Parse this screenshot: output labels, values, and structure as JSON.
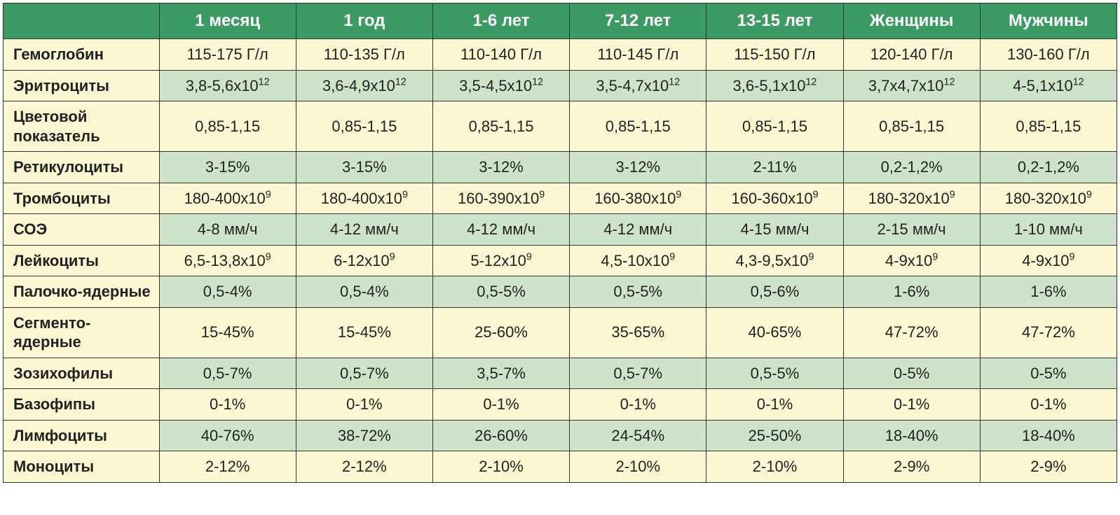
{
  "table": {
    "header_bg": "#3b9b63",
    "header_fg": "#ffffff",
    "row_bg_odd": "#faf7d2",
    "row_bg_even": "#cfe3cb",
    "border_color": "#333333",
    "label_fontweight": "bold",
    "value_align": "center",
    "font_family": "Arial",
    "header_fontsize_pt": 18,
    "cell_fontsize_pt": 16,
    "columns": [
      "",
      "1 месяц",
      "1 год",
      "1-6 лет",
      "7-12 лет",
      "13-15 лет",
      "Женщины",
      "Мужчины"
    ],
    "rows": [
      {
        "label": "Гемоглобин",
        "band": "odd",
        "cells": [
          {
            "text": "115-175 Г/л"
          },
          {
            "text": "110-135 Г/л"
          },
          {
            "text": "110-140 Г/л"
          },
          {
            "text": "110-145 Г/л"
          },
          {
            "text": "115-150 Г/л"
          },
          {
            "text": "120-140 Г/л"
          },
          {
            "text": "130-160 Г/л"
          }
        ]
      },
      {
        "label": "Эритроциты",
        "band": "even",
        "cells": [
          {
            "text": "3,8-5,6х10",
            "sup": "12"
          },
          {
            "text": "3,6-4,9х10",
            "sup": "12"
          },
          {
            "text": "3,5-4,5х10",
            "sup": "12"
          },
          {
            "text": "3,5-4,7х10",
            "sup": "12"
          },
          {
            "text": "3,6-5,1х10",
            "sup": "12"
          },
          {
            "text": "3,7х4,7х10",
            "sup": "12"
          },
          {
            "text": "4-5,1х10",
            "sup": "12"
          }
        ]
      },
      {
        "label": "Цветовой показатель",
        "band": "odd",
        "cells": [
          {
            "text": "0,85-1,15"
          },
          {
            "text": "0,85-1,15"
          },
          {
            "text": "0,85-1,15"
          },
          {
            "text": "0,85-1,15"
          },
          {
            "text": "0,85-1,15"
          },
          {
            "text": "0,85-1,15"
          },
          {
            "text": "0,85-1,15"
          }
        ]
      },
      {
        "label": "Ретикулоциты",
        "band": "even",
        "cells": [
          {
            "text": "3-15%"
          },
          {
            "text": "3-15%"
          },
          {
            "text": "3-12%"
          },
          {
            "text": "3-12%"
          },
          {
            "text": "2-11%"
          },
          {
            "text": "0,2-1,2%"
          },
          {
            "text": "0,2-1,2%"
          }
        ]
      },
      {
        "label": "Тромбоциты",
        "band": "odd",
        "cells": [
          {
            "text": "180-400х10",
            "sup": "9"
          },
          {
            "text": "180-400х10",
            "sup": "9"
          },
          {
            "text": "160-390х10",
            "sup": "9"
          },
          {
            "text": "160-380х10",
            "sup": "9"
          },
          {
            "text": "160-360х10",
            "sup": "9"
          },
          {
            "text": "180-320х10",
            "sup": "9"
          },
          {
            "text": "180-320х10",
            "sup": "9"
          }
        ]
      },
      {
        "label": "СОЭ",
        "band": "even",
        "cells": [
          {
            "text": "4-8 мм/ч"
          },
          {
            "text": "4-12 мм/ч"
          },
          {
            "text": "4-12 мм/ч"
          },
          {
            "text": "4-12 мм/ч"
          },
          {
            "text": "4-15 мм/ч"
          },
          {
            "text": "2-15 мм/ч"
          },
          {
            "text": "1-10 мм/ч"
          }
        ]
      },
      {
        "label": "Лейкоциты",
        "band": "odd",
        "cells": [
          {
            "text": "6,5-13,8х10",
            "sup": "9"
          },
          {
            "text": "6-12х10",
            "sup": "9"
          },
          {
            "text": "5-12х10",
            "sup": "9"
          },
          {
            "text": "4,5-10х10",
            "sup": "9"
          },
          {
            "text": "4,3-9,5х10",
            "sup": "9"
          },
          {
            "text": "4-9х10",
            "sup": "9"
          },
          {
            "text": "4-9х10",
            "sup": "9"
          }
        ]
      },
      {
        "label": "Палочко-ядерные",
        "band": "even",
        "cells": [
          {
            "text": "0,5-4%"
          },
          {
            "text": "0,5-4%"
          },
          {
            "text": "0,5-5%"
          },
          {
            "text": "0,5-5%"
          },
          {
            "text": "0,5-6%"
          },
          {
            "text": "1-6%"
          },
          {
            "text": "1-6%"
          }
        ]
      },
      {
        "label": "Сегменто-ядерные",
        "band": "odd",
        "cells": [
          {
            "text": "15-45%"
          },
          {
            "text": "15-45%"
          },
          {
            "text": "25-60%"
          },
          {
            "text": "35-65%"
          },
          {
            "text": "40-65%"
          },
          {
            "text": "47-72%"
          },
          {
            "text": "47-72%"
          }
        ]
      },
      {
        "label": "Зозихофилы",
        "band": "even",
        "cells": [
          {
            "text": "0,5-7%"
          },
          {
            "text": "0,5-7%"
          },
          {
            "text": "3,5-7%"
          },
          {
            "text": "0,5-7%"
          },
          {
            "text": "0,5-5%"
          },
          {
            "text": "0-5%"
          },
          {
            "text": "0-5%"
          }
        ]
      },
      {
        "label": "Базофипы",
        "band": "odd",
        "cells": [
          {
            "text": "0-1%"
          },
          {
            "text": "0-1%"
          },
          {
            "text": "0-1%"
          },
          {
            "text": "0-1%"
          },
          {
            "text": "0-1%"
          },
          {
            "text": "0-1%"
          },
          {
            "text": "0-1%"
          }
        ]
      },
      {
        "label": "Лимфоциты",
        "band": "even",
        "cells": [
          {
            "text": "40-76%"
          },
          {
            "text": "38-72%"
          },
          {
            "text": "26-60%"
          },
          {
            "text": "24-54%"
          },
          {
            "text": "25-50%"
          },
          {
            "text": "18-40%"
          },
          {
            "text": "18-40%"
          }
        ]
      },
      {
        "label": "Моноциты",
        "band": "odd",
        "cells": [
          {
            "text": "2-12%"
          },
          {
            "text": "2-12%"
          },
          {
            "text": "2-10%"
          },
          {
            "text": "2-10%"
          },
          {
            "text": "2-10%"
          },
          {
            "text": "2-9%"
          },
          {
            "text": "2-9%"
          }
        ]
      }
    ]
  }
}
